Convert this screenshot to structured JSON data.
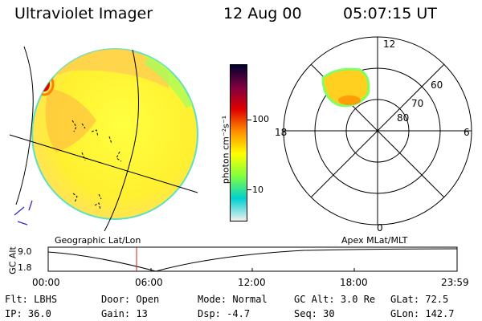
{
  "header": {
    "instrument": "Ultraviolet Imager",
    "date": "12 Aug 00",
    "time": "05:07:15 UT"
  },
  "colorbar": {
    "unit_label": "photon cm⁻²s⁻¹",
    "ticks": [
      "100",
      "10"
    ],
    "colors": [
      "#f0f0f0",
      "#00d0d0",
      "#80ff40",
      "#ffff00",
      "#ff9000",
      "#e00000",
      "#800040",
      "#000030"
    ]
  },
  "polar": {
    "mlt_labels": {
      "top": "12",
      "bottom": "0",
      "left": "18",
      "right": "6"
    },
    "lat_labels": [
      "60",
      "70",
      "80"
    ]
  },
  "altitude_panel": {
    "left_title": "Geographic Lat/Lon",
    "right_title": "Apex MLat/MLT",
    "axis_label": "GC Alt",
    "y_ticks": [
      "9.0",
      "1.8"
    ],
    "x_ticks": [
      "00:00",
      "06:00",
      "12:00",
      "18:00",
      "23:59"
    ],
    "current_time_marker_color": "#d02020"
  },
  "status": {
    "filter_label": "Flt:",
    "filter_value": "LBHS",
    "ip_label": "IP:",
    "ip_value": "36.0",
    "door_label": "Door:",
    "door_value": "Open",
    "gain_label": "Gain:",
    "gain_value": "13",
    "mode_label": "Mode:",
    "mode_value": "Normal",
    "dsp_label": "Dsp:",
    "dsp_value": "-4.7",
    "gcalt_label": "GC Alt:",
    "gcalt_value": "3.0 Re",
    "seq_label": "Seq:",
    "seq_value": "30",
    "glat_label": "GLat:",
    "glat_value": "72.5",
    "glon_label": "GLon:",
    "glon_value": "142.7"
  }
}
